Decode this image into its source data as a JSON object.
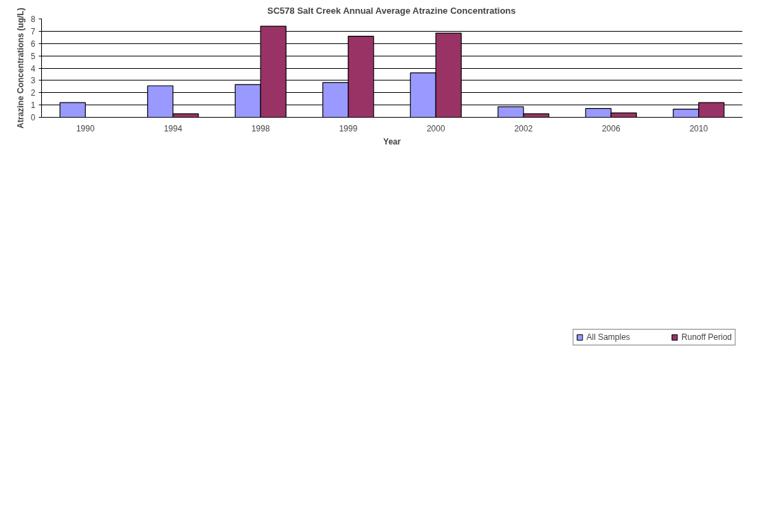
{
  "chart_data": {
    "type": "bar",
    "title": "SC578 Salt Creek Annual Average Atrazine Concentrations",
    "xlabel": "Year",
    "ylabel": "Atrazine Concentrations (ug/L)",
    "categories": [
      "1990",
      "1994",
      "1998",
      "1999",
      "2000",
      "2002",
      "2006",
      "2010"
    ],
    "series": [
      {
        "name": "All Samples",
        "color": "#9999ff",
        "values": [
          1.2,
          2.56,
          2.66,
          2.83,
          3.61,
          0.86,
          0.72,
          0.66
        ]
      },
      {
        "name": "Runoff Period",
        "color": "#993366",
        "values": [
          null,
          0.29,
          7.41,
          6.59,
          6.85,
          0.29,
          0.36,
          1.2
        ]
      }
    ],
    "ylim": [
      0,
      8
    ],
    "yticks": [
      0,
      1,
      2,
      3,
      4,
      5,
      6,
      7,
      8
    ],
    "grid": "y",
    "legend": "bottom"
  }
}
